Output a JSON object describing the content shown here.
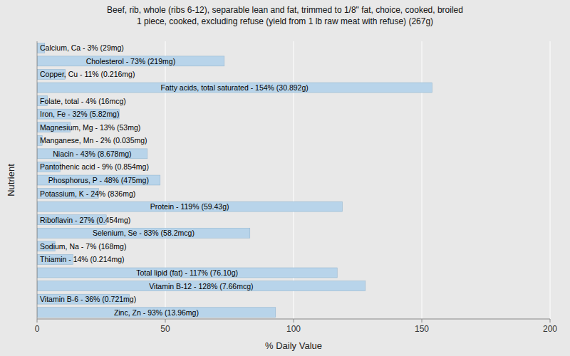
{
  "chart_data": {
    "type": "bar",
    "orientation": "horizontal",
    "title": "Beef, rib, whole (ribs 6-12), separable lean and fat, trimmed to 1/8\" fat, choice, cooked, broiled\n1 piece, cooked, excluding refuse (yield from 1 lb raw meat with refuse) (267g)",
    "xlabel": "% Daily Value",
    "ylabel": "Nutrient",
    "xlim": [
      0,
      200
    ],
    "xticks": [
      0,
      50,
      100,
      150,
      200
    ],
    "grid": true,
    "tick_labels": "x",
    "color": "#b8d4ea",
    "categories": [
      "Calcium, Ca - 3% (29mg)",
      "Cholesterol - 73% (219mg)",
      "Copper, Cu - 11% (0.216mg)",
      "Fatty acids, total saturated - 154% (30.892g)",
      "Folate, total - 4% (16mcg)",
      "Iron, Fe - 32% (5.82mg)",
      "Magnesium, Mg - 13% (53mg)",
      "Manganese, Mn - 2% (0.035mg)",
      "Niacin - 43% (8.678mg)",
      "Pantothenic acid - 9% (0.854mg)",
      "Phosphorus, P - 48% (475mg)",
      "Potassium, K - 24% (836mg)",
      "Protein - 119% (59.43g)",
      "Riboflavin - 27% (0.454mg)",
      "Selenium, Se - 83% (58.2mcg)",
      "Sodium, Na - 7% (168mg)",
      "Thiamin - 14% (0.214mg)",
      "Total lipid (fat) - 117% (76.10g)",
      "Vitamin B-12 - 128% (7.66mcg)",
      "Vitamin B-6 - 36% (0.721mg)",
      "Zinc, Zn - 93% (13.96mg)"
    ],
    "values": [
      3,
      73,
      11,
      154,
      4,
      32,
      13,
      2,
      43,
      9,
      48,
      24,
      119,
      27,
      83,
      7,
      14,
      117,
      128,
      36,
      93
    ]
  }
}
